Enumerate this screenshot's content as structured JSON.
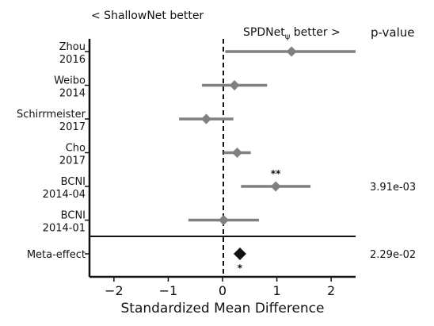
{
  "chart_data": {
    "type": "forest",
    "header_left": "< ShallowNet better",
    "header_right": "SPDNet",
    "header_right_subscript": "ψ",
    "header_right_suffix": " better >",
    "pvalue_header": "p-value",
    "xlabel": "Standardized Mean Difference",
    "xlim": [
      -2.45,
      2.45
    ],
    "xticks": [
      -2,
      -1,
      0,
      1,
      2
    ],
    "xtick_labels": [
      "−2",
      "−1",
      "0",
      "1",
      "2"
    ],
    "studies": [
      {
        "label_line1": "Zhou",
        "label_line2": "2016",
        "estimate": 1.27,
        "ci": [
          0.05,
          2.55
        ],
        "stars": "",
        "pvalue": ""
      },
      {
        "label_line1": "Weibo",
        "label_line2": "2014",
        "estimate": 0.22,
        "ci": [
          -0.38,
          0.82
        ],
        "stars": "",
        "pvalue": ""
      },
      {
        "label_line1": "Schirrmeister",
        "label_line2": "2017",
        "estimate": -0.3,
        "ci": [
          -0.8,
          0.2
        ],
        "stars": "",
        "pvalue": ""
      },
      {
        "label_line1": "Cho",
        "label_line2": "2017",
        "estimate": 0.27,
        "ci": [
          0.02,
          0.52
        ],
        "stars": "",
        "pvalue": ""
      },
      {
        "label_line1": "BCNI",
        "label_line2": "2014-04",
        "estimate": 0.98,
        "ci": [
          0.34,
          1.62
        ],
        "stars": "**",
        "pvalue": "3.91e-03"
      },
      {
        "label_line1": "BCNI",
        "label_line2": "2014-01",
        "estimate": 0.02,
        "ci": [
          -0.63,
          0.67
        ],
        "stars": "",
        "pvalue": ""
      }
    ],
    "meta": {
      "label": "Meta-effect",
      "estimate": 0.32,
      "stars": "*",
      "pvalue": "2.29e-02"
    },
    "colors": {
      "study": "#808080",
      "meta": "#111111",
      "star": "#d62728",
      "axis": "#111111",
      "reference_line": "#111111"
    }
  }
}
